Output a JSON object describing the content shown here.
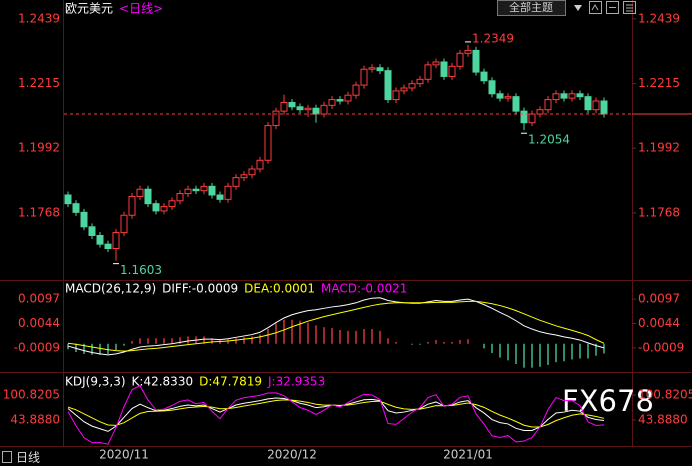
{
  "chart_data": [
    {
      "type": "candlestick",
      "title": "欧元美元",
      "subtitle": "<日线>",
      "categories": [
        null,
        null,
        null,
        null,
        null,
        null,
        null,
        "2020/11",
        null,
        null,
        null,
        null,
        null,
        null,
        null,
        null,
        null,
        null,
        null,
        null,
        null,
        null,
        null,
        null,
        null,
        null,
        null,
        null,
        "2020/12",
        null,
        null,
        null,
        null,
        null,
        null,
        null,
        null,
        null,
        null,
        null,
        null,
        null,
        null,
        null,
        null,
        null,
        null,
        null,
        null,
        null,
        "2021/01",
        null,
        null,
        null,
        null,
        null,
        null,
        null,
        null,
        null,
        null,
        null,
        null,
        null,
        null,
        null,
        null,
        null
      ],
      "open": [
        1.183,
        1.18,
        1.177,
        1.172,
        1.169,
        1.166,
        1.1645,
        1.17,
        1.176,
        1.1825,
        1.185,
        1.18,
        1.1775,
        1.179,
        1.181,
        1.1835,
        1.185,
        1.1845,
        1.186,
        1.183,
        1.1815,
        1.186,
        1.189,
        1.19,
        1.192,
        1.195,
        1.207,
        1.212,
        1.215,
        1.2135,
        1.2125,
        1.213,
        1.211,
        1.214,
        1.216,
        1.2155,
        1.2175,
        1.221,
        1.2265,
        1.227,
        1.226,
        1.216,
        1.219,
        1.22,
        1.2215,
        1.223,
        1.228,
        1.229,
        1.224,
        1.2275,
        1.232,
        1.233,
        1.2255,
        1.2225,
        1.218,
        1.2165,
        1.217,
        1.212,
        1.208,
        1.211,
        1.2125,
        1.216,
        1.218,
        1.2165,
        1.218,
        1.217,
        1.2125,
        1.2155
      ],
      "high": [
        1.1842,
        1.1812,
        1.1782,
        1.1732,
        1.1702,
        1.1672,
        1.1712,
        1.1772,
        1.1837,
        1.1862,
        1.1862,
        1.1812,
        1.1802,
        1.1822,
        1.1847,
        1.1862,
        1.1862,
        1.1872,
        1.1872,
        1.1842,
        1.1872,
        1.1902,
        1.1912,
        1.1932,
        1.1962,
        1.2082,
        1.2132,
        1.2177,
        1.2162,
        1.2147,
        1.2142,
        1.2142,
        1.2152,
        1.2172,
        1.2172,
        1.2187,
        1.2222,
        1.2277,
        1.2282,
        1.2282,
        1.2272,
        1.2202,
        1.2212,
        1.2227,
        1.2242,
        1.2292,
        1.2302,
        1.2302,
        1.2287,
        1.2332,
        1.2349,
        1.2342,
        1.2267,
        1.2237,
        1.2192,
        1.2182,
        1.2182,
        1.2132,
        1.2122,
        1.2137,
        1.2172,
        1.2192,
        1.2192,
        1.2192,
        1.2192,
        1.2182,
        1.2167,
        1.2167
      ],
      "low": [
        1.1788,
        1.1758,
        1.1708,
        1.1678,
        1.1648,
        1.1633,
        1.1603,
        1.1688,
        1.1748,
        1.1813,
        1.1788,
        1.1763,
        1.1763,
        1.1778,
        1.1798,
        1.1823,
        1.1833,
        1.1833,
        1.1818,
        1.1803,
        1.1803,
        1.1848,
        1.1878,
        1.1888,
        1.1908,
        1.1938,
        1.2058,
        1.2108,
        1.2123,
        1.2113,
        1.21,
        1.208,
        1.2098,
        1.2128,
        1.2143,
        1.2143,
        1.2163,
        1.2198,
        1.2253,
        1.2248,
        1.2148,
        1.2148,
        1.2178,
        1.2188,
        1.2203,
        1.2218,
        1.2268,
        1.2228,
        1.2228,
        1.2263,
        1.2308,
        1.2243,
        1.2213,
        1.2168,
        1.2153,
        1.2153,
        1.2108,
        1.2054,
        1.2068,
        1.2098,
        1.2113,
        1.2148,
        1.2153,
        1.2153,
        1.2158,
        1.2113,
        1.2113,
        1.2098
      ],
      "close": [
        1.18,
        1.177,
        1.172,
        1.169,
        1.166,
        1.1645,
        1.17,
        1.176,
        1.1825,
        1.185,
        1.18,
        1.1775,
        1.179,
        1.181,
        1.1835,
        1.185,
        1.1845,
        1.186,
        1.183,
        1.1815,
        1.186,
        1.189,
        1.19,
        1.192,
        1.195,
        1.207,
        1.212,
        1.215,
        1.2135,
        1.2125,
        1.213,
        1.211,
        1.214,
        1.216,
        1.2155,
        1.2175,
        1.221,
        1.2265,
        1.227,
        1.226,
        1.216,
        1.219,
        1.22,
        1.2215,
        1.223,
        1.228,
        1.229,
        1.224,
        1.2275,
        1.232,
        1.233,
        1.2255,
        1.2225,
        1.218,
        1.2165,
        1.217,
        1.212,
        1.208,
        1.211,
        1.2125,
        1.216,
        1.218,
        1.2165,
        1.218,
        1.217,
        1.2125,
        1.2155,
        1.211
      ],
      "up_color": "#ff3c3c",
      "down_color": "#4ed6a0",
      "high_label": "1.2349",
      "recent_low_label": "1.2054",
      "low_label": "1.1603",
      "ylim": [
        1.1543,
        1.2487
      ],
      "yticks": [
        1.2439,
        1.2215,
        1.1992,
        1.1768
      ],
      "grid": false
    },
    {
      "type": "macd",
      "title": "MACD(26,12,9)",
      "series": [
        {
          "name": "DIFF:-0.0009",
          "color": "#ffffff",
          "values": [
            -0.0005,
            -0.001,
            -0.0015,
            -0.0019,
            -0.0022,
            -0.0024,
            -0.0022,
            -0.0018,
            -0.0012,
            -0.0007,
            -0.0005,
            -0.0004,
            -0.0002,
            0,
            0.0003,
            0.0006,
            0.0008,
            0.001,
            0.001,
            0.0009,
            0.0011,
            0.0014,
            0.0017,
            0.002,
            0.0025,
            0.0035,
            0.0046,
            0.0056,
            0.0063,
            0.0068,
            0.0072,
            0.0074,
            0.0077,
            0.008,
            0.0082,
            0.0085,
            0.0089,
            0.0095,
            0.0099,
            0.01,
            0.0094,
            0.0091,
            0.0089,
            0.0088,
            0.0088,
            0.0091,
            0.0094,
            0.0092,
            0.0092,
            0.0095,
            0.0097,
            0.0092,
            0.0085,
            0.0077,
            0.0068,
            0.006,
            0.005,
            0.0039,
            0.0032,
            0.0026,
            0.0022,
            0.0019,
            0.0015,
            0.0012,
            0.0008,
            0.0002,
            -0.0004,
            -0.0009
          ]
        },
        {
          "name": "DEA:0.0001",
          "color": "#ffff00",
          "values": [
            0.0001,
            -0.0001,
            -0.0004,
            -0.0007,
            -0.001,
            -0.0013,
            -0.0015,
            -0.0016,
            -0.0015,
            -0.0013,
            -0.0011,
            -0.001,
            -0.0008,
            -0.0006,
            -0.0004,
            -0.0002,
            0,
            0.0002,
            0.0004,
            0.0005,
            0.0006,
            0.0008,
            0.001,
            0.0012,
            0.0015,
            0.0019,
            0.0024,
            0.003,
            0.0037,
            0.0043,
            0.0049,
            0.0054,
            0.0059,
            0.0063,
            0.0067,
            0.0071,
            0.0075,
            0.0079,
            0.0083,
            0.0086,
            0.0088,
            0.0089,
            0.0089,
            0.0089,
            0.0089,
            0.0089,
            0.009,
            0.009,
            0.009,
            0.0091,
            0.0092,
            0.0092,
            0.009,
            0.0087,
            0.0083,
            0.0078,
            0.0072,
            0.0065,
            0.0058,
            0.0051,
            0.0045,
            0.0039,
            0.0034,
            0.0029,
            0.0024,
            0.0018,
            0.0009,
            0.0001
          ]
        },
        {
          "name": "MACD:-0.0021",
          "color": "#ff00ff",
          "positive_color": "#ff3c3c",
          "negative_color": "#4ed6a0",
          "values": [
            -0.0012,
            -0.0018,
            -0.0022,
            -0.0024,
            -0.0024,
            -0.0022,
            -0.0014,
            -0.0004,
            0.0006,
            0.0012,
            0.0012,
            0.0012,
            0.0012,
            0.0012,
            0.0014,
            0.0016,
            0.0016,
            0.0016,
            0.0012,
            0.0008,
            0.001,
            0.0012,
            0.0014,
            0.0016,
            0.002,
            0.0032,
            0.0044,
            0.0052,
            0.0052,
            0.005,
            0.0046,
            0.004,
            0.0036,
            0.0034,
            0.003,
            0.0028,
            0.0028,
            0.0032,
            0.0032,
            0.0028,
            0.0012,
            0.0004,
            0,
            -0.0002,
            -0.0002,
            0.0004,
            0.0008,
            0.0004,
            0.0004,
            0.0008,
            0.001,
            0,
            -0.001,
            -0.002,
            -0.003,
            -0.0036,
            -0.0044,
            -0.0052,
            -0.0052,
            -0.005,
            -0.0046,
            -0.004,
            -0.0038,
            -0.0034,
            -0.0032,
            -0.0032,
            -0.0026,
            -0.0021
          ]
        }
      ],
      "ylim": [
        -0.0057,
        0.0132
      ],
      "yticks": [
        0.0097,
        0.0044,
        -0.0009
      ]
    },
    {
      "type": "kdj",
      "title": "KDJ(9,3,3)",
      "series": [
        {
          "name": "K:42.8330",
          "color": "#ffffff",
          "values": [
            70,
            55,
            40,
            30,
            24,
            18,
            30,
            50,
            70,
            80,
            72,
            65,
            66,
            70,
            75,
            78,
            76,
            78,
            70,
            62,
            70,
            78,
            82,
            85,
            88,
            92,
            94,
            93,
            88,
            82,
            78,
            72,
            74,
            78,
            76,
            80,
            85,
            90,
            91,
            88,
            65,
            60,
            62,
            66,
            70,
            80,
            85,
            76,
            78,
            85,
            88,
            72,
            60,
            45,
            38,
            35,
            25,
            20,
            20,
            28,
            45,
            60,
            62,
            66,
            64,
            50,
            45,
            42.833
          ]
        },
        {
          "name": "D:47.7819",
          "color": "#ffff00",
          "values": [
            73.3,
            67.2,
            58.1,
            48.8,
            39.8,
            32.6,
            31.7,
            37.8,
            48.5,
            59.0,
            63.3,
            63.9,
            64.6,
            66.4,
            69.3,
            72.2,
            73.5,
            75.0,
            73.3,
            69.5,
            69.7,
            72.5,
            75.7,
            78.8,
            81.9,
            85.3,
            88.2,
            89.8,
            89.2,
            86.8,
            83.9,
            79.9,
            77.9,
            77.9,
            77.3,
            78.2,
            80.5,
            83.7,
            86.1,
            86.7,
            79.5,
            73.0,
            69.3,
            68.2,
            68.8,
            72.5,
            76.7,
            76.5,
            77.0,
            79.7,
            82.5,
            79.0,
            72.7,
            63.5,
            55.0,
            48.3,
            40.5,
            32.0,
            28.0,
            28.0,
            33.7,
            42.5,
            49.0,
            54.7,
            57.8,
            55.2,
            51.8,
            47.7819
          ]
        },
        {
          "name": "J:32.9353",
          "color": "#ff00ff",
          "values": [
            63.4,
            30.6,
            3.8,
            -7.6,
            -7.6,
            -11.2,
            26.6,
            74.4,
            113,
            122,
            89.4,
            67.2,
            68.8,
            77.2,
            86.4,
            89.6,
            81,
            84,
            63.4,
            47,
            70.6,
            89,
            94.6,
            97.4,
            100.2,
            105.4,
            105.6,
            99.4,
            85.6,
            72.4,
            66.2,
            56.2,
            66.2,
            78.2,
            73.4,
            83.6,
            94,
            102.6,
            100.8,
            90.6,
            36,
            34,
            47.4,
            61.6,
            72.4,
            95,
            101.6,
            75,
            80,
            95.6,
            99,
            58,
            34.6,
            8,
            4,
            8.4,
            -6,
            -4,
            4,
            28,
            67.6,
            95,
            88,
            88.6,
            76.4,
            39.6,
            31.4,
            32.9353
          ]
        }
      ],
      "ylim": [
        -13,
        146.4
      ],
      "yticks": [
        100.8205,
        {
          "value": 43.888,
          "label": "43.8880"
        }
      ]
    }
  ],
  "toolbar": {
    "theme_button": "全部主题"
  },
  "watermark": "FX678",
  "period_tab": "日线"
}
